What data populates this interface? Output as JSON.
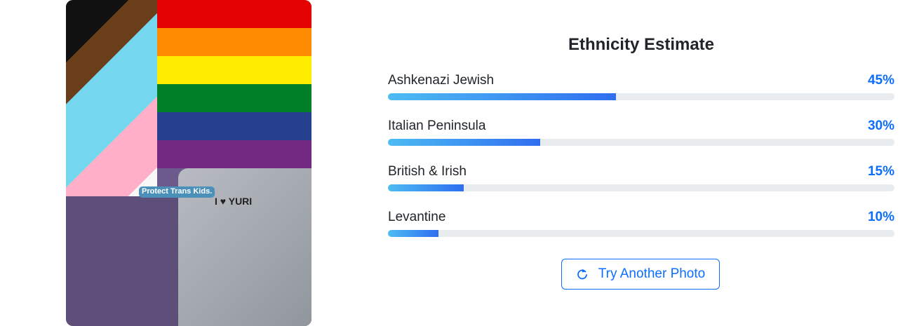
{
  "photo": {
    "stickers": [
      "Protect Trans Kids.",
      "I ♥ YURI"
    ],
    "flag_colors": [
      "#e40303",
      "#ff8c00",
      "#ffed00",
      "#008026",
      "#24408e",
      "#732982"
    ]
  },
  "results": {
    "title": "Ethnicity Estimate",
    "items": [
      {
        "label": "Ashkenazi Jewish",
        "percent_label": "45%",
        "percent": 45
      },
      {
        "label": "Italian Peninsula",
        "percent_label": "30%",
        "percent": 30
      },
      {
        "label": "British & Irish",
        "percent_label": "15%",
        "percent": 15
      },
      {
        "label": "Levantine",
        "percent_label": "10%",
        "percent": 10
      }
    ],
    "accent_color": "#0d6efd"
  },
  "actions": {
    "retry_label": "Try Another Photo",
    "retry_icon": "refresh-icon"
  }
}
